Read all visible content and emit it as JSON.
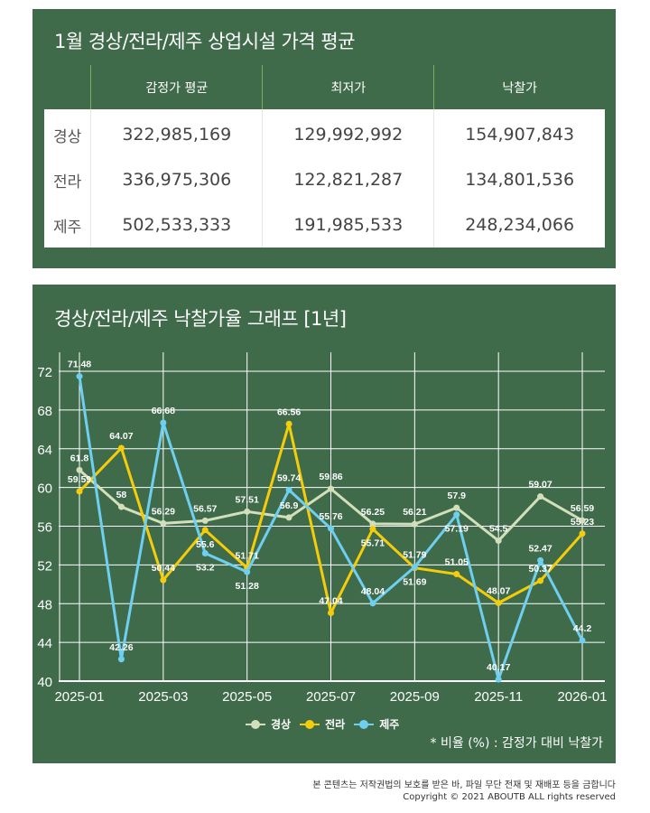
{
  "table_panel": {
    "title": "1월 경상/전라/제주 상업시설 가격 평균",
    "headers": [
      "",
      "감정가 평균",
      "최저가",
      "낙찰가"
    ],
    "rows": [
      [
        "경상",
        "322,985,169",
        "129,992,992",
        "154,907,843"
      ],
      [
        "전라",
        "336,975,306",
        "122,821,287",
        "134,801,536"
      ],
      [
        "제주",
        "502,533,333",
        "191,985,533",
        "248,234,066"
      ]
    ]
  },
  "chart_panel": {
    "title": "경상/전라/제주 낙찰가율 그래프 [1년]",
    "note": "* 비율 (%) : 감정가 대비 낙찰가"
  },
  "chart_data": {
    "type": "line",
    "x": [
      "2025-01",
      "2025-02",
      "2025-03",
      "2025-04",
      "2025-05",
      "2025-06",
      "2025-07",
      "2025-08",
      "2025-09",
      "2025-10",
      "2025-11",
      "2025-12",
      "2026-01"
    ],
    "xticks": [
      "2025-01",
      "2025-03",
      "2025-05",
      "2025-07",
      "2025-09",
      "2025-11",
      "2026-01"
    ],
    "yticks": [
      40,
      44,
      48,
      52,
      56,
      60,
      64,
      68,
      72
    ],
    "ylim": [
      40,
      72
    ],
    "grid": true,
    "legend": "bottom",
    "series": [
      {
        "name": "경상",
        "color": "#d3dfbb",
        "values": [
          61.8,
          58,
          56.29,
          56.57,
          57.51,
          56.9,
          59.86,
          56.25,
          56.21,
          57.9,
          54.5,
          59.07,
          56.59
        ]
      },
      {
        "name": "전라",
        "color": "#f5cc0a",
        "values": [
          59.59,
          64.07,
          50.44,
          55.6,
          51.71,
          66.56,
          47.04,
          55.71,
          51.69,
          51.05,
          48.07,
          50.37,
          55.23
        ]
      },
      {
        "name": "제주",
        "color": "#6fcff0",
        "values": [
          71.48,
          42.26,
          66.68,
          53.2,
          51.28,
          59.74,
          55.76,
          48.04,
          51.79,
          57.19,
          40.17,
          52.47,
          44.2
        ]
      }
    ]
  },
  "footer": {
    "line1": "본 콘텐츠는 저작권법의 보호를 받은 바, 파일 무단 전재 및 재배포 등을 금합니다",
    "line2": "Copyright © 2021 ABOUTB ALL rights reserved"
  }
}
